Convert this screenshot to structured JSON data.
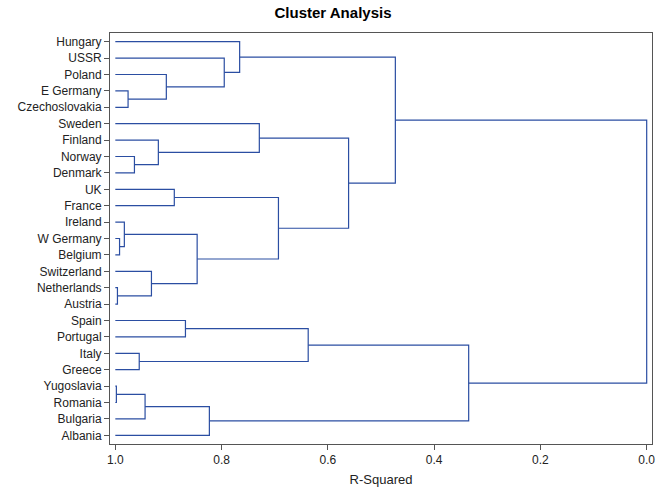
{
  "chart_data": {
    "type": "dendrogram",
    "title": "Cluster Analysis",
    "x_label": "R-Squared",
    "categories": [
      "Hungary",
      "USSR",
      "Poland",
      "E Germany",
      "Czechoslovakia",
      "Sweden",
      "Finland",
      "Norway",
      "Denmark",
      "UK",
      "France",
      "Ireland",
      "W Germany",
      "Belgium",
      "Switzerland",
      "Netherlands",
      "Austria",
      "Spain",
      "Portugal",
      "Italy",
      "Greece",
      "Yugoslavia",
      "Romania",
      "Bulgaria",
      "Albania"
    ],
    "leaf_value": 1.0,
    "merges": [
      [
        21,
        22,
        0.998
      ],
      [
        15,
        16,
        0.996
      ],
      [
        12,
        13,
        0.992
      ],
      [
        11,
        27,
        0.983
      ],
      [
        3,
        4,
        0.976
      ],
      [
        7,
        8,
        0.964
      ],
      [
        19,
        20,
        0.955
      ],
      [
        25,
        23,
        0.944
      ],
      [
        14,
        26,
        0.932
      ],
      [
        6,
        30,
        0.919
      ],
      [
        2,
        29,
        0.904
      ],
      [
        9,
        10,
        0.889
      ],
      [
        17,
        18,
        0.868
      ],
      [
        28,
        33,
        0.846
      ],
      [
        32,
        24,
        0.823
      ],
      [
        1,
        35,
        0.795
      ],
      [
        0,
        40,
        0.766
      ],
      [
        5,
        34,
        0.729
      ],
      [
        36,
        38,
        0.693
      ],
      [
        37,
        31,
        0.637
      ],
      [
        42,
        43,
        0.561
      ],
      [
        41,
        45,
        0.473
      ],
      [
        44,
        39,
        0.335
      ],
      [
        46,
        47,
        0.0
      ]
    ],
    "xlim": [
      1.01,
      -0.01
    ],
    "xticks": [
      {
        "value": 1.0,
        "label": "1.0"
      },
      0.8,
      0.6,
      0.4,
      0.2,
      {
        "value": 0.0,
        "label": "0.0"
      }
    ],
    "color": "#2b4ea2",
    "grid": false
  }
}
